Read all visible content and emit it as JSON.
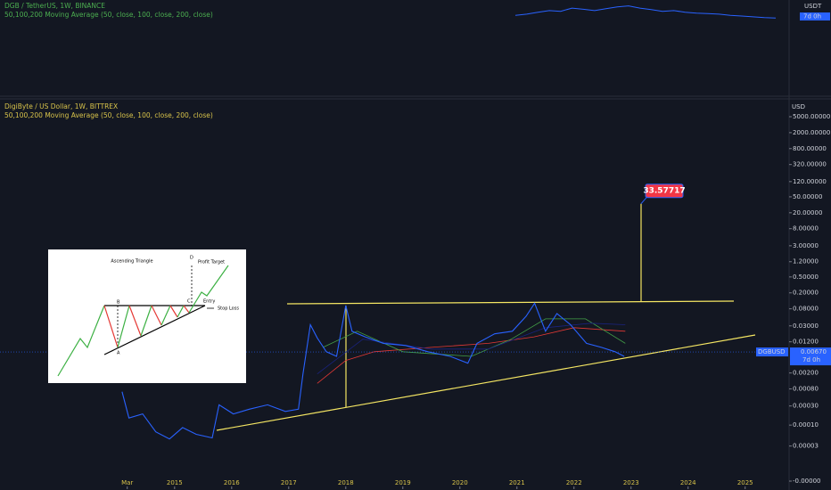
{
  "chart_data": [
    {
      "type": "line",
      "title": "DGB / TetherUS, 1W, BINANCE",
      "indicator": "50,100,200 Moving Average (50, close, 100, close, 200, close)",
      "axis_unit": "USDT",
      "countdown": "7d 0h",
      "log_scale": true,
      "ylim": [
        0.005,
        0.06
      ],
      "series": [
        {
          "color": "#2962ff",
          "values": [
            0.012,
            0.014,
            0.018,
            0.022,
            0.02,
            0.03,
            0.026,
            0.022,
            0.028,
            0.035,
            0.04,
            0.03,
            0.025,
            0.02,
            0.022,
            0.018,
            0.016,
            0.015,
            0.014,
            0.012,
            0.011,
            0.01,
            0.009,
            0.0085
          ]
        }
      ]
    },
    {
      "type": "line",
      "title": "DigiByte / US Dollar, 1W, BITTREX",
      "indicator": "50,100,200 Moving Average (50, close, 100, close, 200, close)",
      "axis_unit": "USD",
      "log_scale": true,
      "grid": false,
      "xlim": [
        2011.94,
        2025.77
      ],
      "xticks": [
        {
          "value": 2014.17,
          "label": "Mar"
        },
        2015,
        2016,
        2017,
        2018,
        2019,
        2020,
        2021,
        2022,
        2023,
        2024,
        2025
      ],
      "ylim": [
        4e-06,
        5000
      ],
      "yticks": [
        {
          "value": 5000,
          "label": "5000.00000"
        },
        {
          "value": 2000,
          "label": "2000.00000"
        },
        {
          "value": 800,
          "label": "800.00000"
        },
        {
          "value": 320,
          "label": "320.00000"
        },
        {
          "value": 120,
          "label": "120.00000"
        },
        {
          "value": 50,
          "label": "50.00000"
        },
        {
          "value": 20,
          "label": "20.00000"
        },
        {
          "value": 8,
          "label": "8.00000"
        },
        {
          "value": 3,
          "label": "3.00000"
        },
        {
          "value": 1.2,
          "label": "1.20000"
        },
        {
          "value": 0.5,
          "label": "0.50000"
        },
        {
          "value": 0.2,
          "label": "0.20000"
        },
        {
          "value": 0.08,
          "label": "0.08000"
        },
        {
          "value": 0.03,
          "label": "0.03000"
        },
        {
          "value": 0.012,
          "label": "0.01200"
        },
        {
          "value": 0.002,
          "label": "0.00200"
        },
        {
          "value": 0.0008,
          "label": "0.00080"
        },
        {
          "value": 0.0003,
          "label": "0.00030"
        },
        {
          "value": 0.0001,
          "label": "0.00010"
        },
        {
          "value": 3e-05,
          "label": "0.00003"
        },
        {
          "value": 4e-06,
          "label": "-0.00000"
        }
      ],
      "series": [
        {
          "color": "#2962ff",
          "x": [
            2014.08,
            2014.2,
            2014.44,
            2014.67,
            2014.91,
            2015.14,
            2015.38,
            2015.66,
            2015.78,
            2016.03,
            2016.31,
            2016.63,
            2016.94,
            2017.17,
            2017.25,
            2017.38,
            2017.5,
            2017.66,
            2017.84,
            2018.0,
            2018.11,
            2018.34,
            2018.66,
            2019.05,
            2019.44,
            2019.83,
            2020.14,
            2020.3,
            2020.61,
            2020.92,
            2021.16,
            2021.31,
            2021.5,
            2021.7,
            2021.94,
            2022.22,
            2022.48,
            2022.72,
            2022.88
          ],
          "values": [
            0.00068,
            0.00015,
            0.00019,
            6.8e-05,
            4.5e-05,
            8.7e-05,
            5.9e-05,
            4.8e-05,
            0.00032,
            0.00019,
            0.00025,
            0.00032,
            0.00022,
            0.00025,
            0.0019,
            0.032,
            0.015,
            0.0068,
            0.0052,
            0.097,
            0.022,
            0.016,
            0.011,
            0.0097,
            0.0068,
            0.0052,
            0.0035,
            0.011,
            0.019,
            0.022,
            0.052,
            0.11,
            0.022,
            0.061,
            0.032,
            0.011,
            0.0087,
            0.0068,
            0.0052
          ]
        },
        {
          "color": "#e53935",
          "x": [
            2017.5,
            2018.0,
            2018.5,
            2019.5,
            2020.5,
            2021.3,
            2022.0,
            2022.9
          ],
          "values": [
            0.0011,
            0.0041,
            0.0068,
            0.0087,
            0.011,
            0.016,
            0.027,
            0.022
          ]
        },
        {
          "color": "#43a047",
          "x": [
            2017.6,
            2018.2,
            2019.0,
            2020.2,
            2020.9,
            2021.5,
            2022.2,
            2022.9
          ],
          "values": [
            0.0087,
            0.022,
            0.0068,
            0.0052,
            0.014,
            0.045,
            0.045,
            0.011
          ]
        },
        {
          "color": "#1a237e",
          "x": [
            2017.5,
            2018.3,
            2019.5,
            2020.5,
            2021.5,
            2022.3,
            2022.9
          ],
          "values": [
            0.0019,
            0.014,
            0.0079,
            0.0079,
            0.027,
            0.035,
            0.032
          ]
        }
      ],
      "last_price": {
        "symbol": "DGBUSD",
        "value": 0.0067,
        "label": "0.00670",
        "countdown": "7d 0h"
      },
      "target": 33.57717
    }
  ],
  "inset": {
    "title": "Ascending Triangle",
    "point_d": "D",
    "profit_target": "Profit Target",
    "point_b": "B",
    "point_c": "C",
    "entry": "Entry",
    "stop_loss": "Stop Loss",
    "point_a": "A"
  }
}
